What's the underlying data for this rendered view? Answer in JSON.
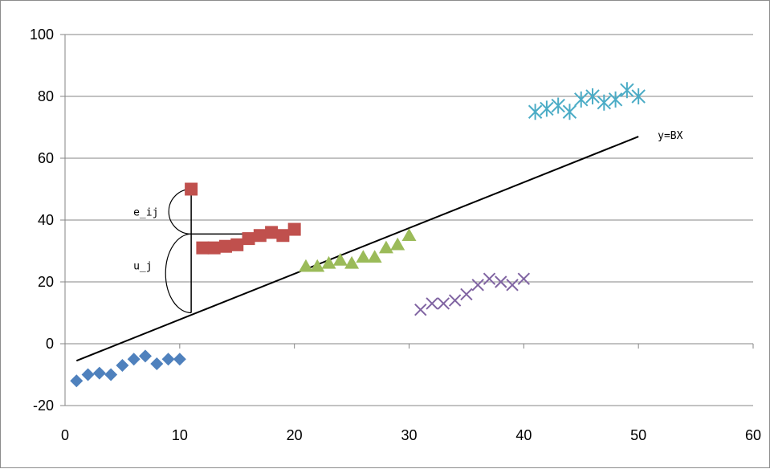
{
  "chart_data": {
    "type": "scatter",
    "title": "",
    "xlabel": "",
    "ylabel": "",
    "xlim": [
      0,
      60
    ],
    "ylim": [
      -20,
      100
    ],
    "x_ticks": [
      "0",
      "10",
      "20",
      "30",
      "40",
      "50",
      "60"
    ],
    "y_ticks": [
      "-20",
      "0",
      "20",
      "40",
      "60",
      "80",
      "100"
    ],
    "grid": "horizontal",
    "legend": "none",
    "series": [
      {
        "marker": "diamond",
        "color": "#4f81bd",
        "points": [
          [
            1,
            -12
          ],
          [
            2,
            -10
          ],
          [
            3,
            -9.5
          ],
          [
            4,
            -10
          ],
          [
            5,
            -7
          ],
          [
            6,
            -5
          ],
          [
            7,
            -4
          ],
          [
            8,
            -6.5
          ],
          [
            9,
            -5
          ],
          [
            10,
            -5
          ]
        ]
      },
      {
        "marker": "square",
        "color": "#c0504d",
        "points": [
          [
            11,
            50
          ],
          [
            12,
            31
          ],
          [
            13,
            31
          ],
          [
            14,
            31.5
          ],
          [
            15,
            32
          ],
          [
            16,
            34
          ],
          [
            17,
            35
          ],
          [
            18,
            36
          ],
          [
            19,
            35
          ],
          [
            20,
            37
          ]
        ]
      },
      {
        "marker": "triangle",
        "color": "#9bbb59",
        "points": [
          [
            21,
            25
          ],
          [
            22,
            25
          ],
          [
            23,
            26
          ],
          [
            24,
            27
          ],
          [
            25,
            26
          ],
          [
            26,
            28
          ],
          [
            27,
            28
          ],
          [
            28,
            31
          ],
          [
            29,
            32
          ],
          [
            30,
            35
          ]
        ]
      },
      {
        "marker": "x",
        "color": "#8064a2",
        "points": [
          [
            31,
            11
          ],
          [
            32,
            13
          ],
          [
            33,
            13
          ],
          [
            34,
            14
          ],
          [
            35,
            16
          ],
          [
            36,
            19
          ],
          [
            37,
            21
          ],
          [
            38,
            20
          ],
          [
            39,
            19
          ],
          [
            40,
            21
          ]
        ]
      },
      {
        "marker": "star",
        "color": "#4bacc6",
        "points": [
          [
            41,
            75
          ],
          [
            42,
            76
          ],
          [
            43,
            77
          ],
          [
            44,
            75
          ],
          [
            45,
            79
          ],
          [
            46,
            80
          ],
          [
            47,
            78
          ],
          [
            48,
            79
          ],
          [
            49,
            82
          ],
          [
            50,
            80
          ]
        ]
      }
    ],
    "regression_line": {
      "label": "y=BX",
      "from": [
        1,
        -5.5
      ],
      "to": [
        50,
        67
      ]
    },
    "annotations": {
      "e_label": "e_ij",
      "u_label": "u_j",
      "x": 11,
      "point_y": 50,
      "mean_y": 35.5,
      "line_y": 10,
      "mean_line_to_x": 20.5
    }
  }
}
